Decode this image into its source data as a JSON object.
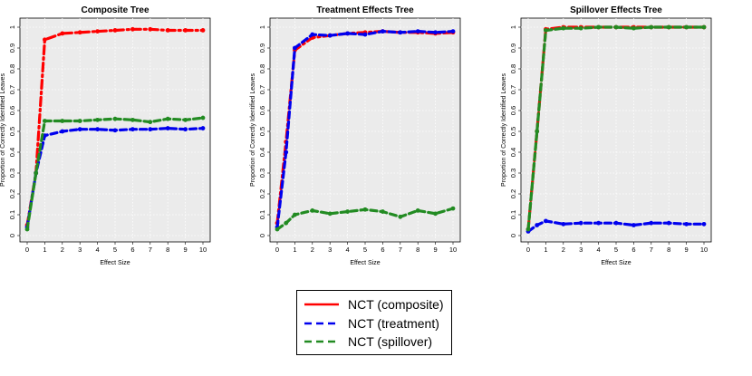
{
  "colors": {
    "composite": "#ff0000",
    "treatment": "#0000ee",
    "spillover": "#228b22",
    "panel_bg": "#ebebeb",
    "grid": "#ffffff"
  },
  "legend": {
    "items": [
      {
        "label": "NCT (composite)",
        "color": "#ff0000",
        "style": "solid"
      },
      {
        "label": "NCT (treatment)",
        "color": "#0000ee",
        "style": "dashed"
      },
      {
        "label": "NCT (spillover)",
        "color": "#228b22",
        "style": "dashed"
      }
    ]
  },
  "chart_data": [
    {
      "type": "line",
      "title": "Composite Tree",
      "xlabel": "Effect Size",
      "ylabel": "Proportion of Correctly Identified Leaves",
      "xlim": [
        0,
        10
      ],
      "ylim": [
        0,
        1
      ],
      "xticks": [
        "0",
        "1",
        "2",
        "3",
        "4",
        "5",
        "6",
        "7",
        "8",
        "9",
        "10"
      ],
      "yticks": [
        "0",
        "0.1",
        "0.2",
        "0.3",
        "0.4",
        "0.5",
        "0.6",
        "0.7",
        "0.8",
        "0.9",
        "1"
      ],
      "x": [
        0,
        0.5,
        1,
        2,
        3,
        4,
        5,
        6,
        7,
        8,
        9,
        10
      ],
      "series": [
        {
          "name": "NCT (composite)",
          "values": [
            0.05,
            0.3,
            0.94,
            0.97,
            0.975,
            0.98,
            0.985,
            0.99,
            0.99,
            0.985,
            0.985,
            0.985
          ]
        },
        {
          "name": "NCT (treatment)",
          "values": [
            0.04,
            0.3,
            0.48,
            0.5,
            0.51,
            0.51,
            0.505,
            0.51,
            0.51,
            0.515,
            0.51,
            0.515
          ]
        },
        {
          "name": "NCT (spillover)",
          "values": [
            0.03,
            0.3,
            0.55,
            0.55,
            0.55,
            0.555,
            0.56,
            0.555,
            0.545,
            0.56,
            0.555,
            0.565
          ]
        }
      ]
    },
    {
      "type": "line",
      "title": "Treatment Effects Tree",
      "xlabel": "Effect Size",
      "ylabel": "Proportion of Correctly Identified Leaves",
      "xlim": [
        0,
        10
      ],
      "ylim": [
        0,
        1
      ],
      "xticks": [
        "0",
        "1",
        "2",
        "3",
        "4",
        "5",
        "6",
        "7",
        "8",
        "9",
        "10"
      ],
      "yticks": [
        "0",
        "0.1",
        "0.2",
        "0.3",
        "0.4",
        "0.5",
        "0.6",
        "0.7",
        "0.8",
        "0.9",
        "1"
      ],
      "x": [
        0,
        0.5,
        1,
        2,
        3,
        4,
        5,
        6,
        7,
        8,
        9,
        10
      ],
      "series": [
        {
          "name": "NCT (composite)",
          "values": [
            0.06,
            0.45,
            0.89,
            0.95,
            0.96,
            0.97,
            0.975,
            0.98,
            0.975,
            0.975,
            0.97,
            0.975
          ]
        },
        {
          "name": "NCT (treatment)",
          "values": [
            0.04,
            0.4,
            0.9,
            0.965,
            0.96,
            0.97,
            0.965,
            0.98,
            0.975,
            0.98,
            0.975,
            0.98
          ]
        },
        {
          "name": "NCT (spillover)",
          "values": [
            0.03,
            0.06,
            0.1,
            0.12,
            0.105,
            0.115,
            0.125,
            0.115,
            0.09,
            0.12,
            0.105,
            0.13
          ]
        }
      ]
    },
    {
      "type": "line",
      "title": "Spillover Effects Tree",
      "xlabel": "Effect Size",
      "ylabel": "Proportion of Correctly Identified Leaves",
      "xlim": [
        0,
        10
      ],
      "ylim": [
        0,
        1
      ],
      "xticks": [
        "0",
        "1",
        "2",
        "3",
        "4",
        "5",
        "6",
        "7",
        "8",
        "9",
        "10"
      ],
      "yticks": [
        "0",
        "0.1",
        "0.2",
        "0.3",
        "0.4",
        "0.5",
        "0.6",
        "0.7",
        "0.8",
        "0.9",
        "1"
      ],
      "x": [
        0,
        0.5,
        1,
        2,
        3,
        4,
        5,
        6,
        7,
        8,
        9,
        10
      ],
      "series": [
        {
          "name": "NCT (composite)",
          "values": [
            0.03,
            0.5,
            0.99,
            1.0,
            1.0,
            1.0,
            1.0,
            1.0,
            1.0,
            1.0,
            1.0,
            1.0
          ]
        },
        {
          "name": "NCT (treatment)",
          "values": [
            0.02,
            0.05,
            0.07,
            0.055,
            0.06,
            0.06,
            0.06,
            0.05,
            0.06,
            0.06,
            0.055,
            0.055
          ]
        },
        {
          "name": "NCT (spillover)",
          "values": [
            0.03,
            0.5,
            0.985,
            0.995,
            0.995,
            1.0,
            1.0,
            0.995,
            1.0,
            1.0,
            1.0,
            1.0
          ]
        }
      ]
    }
  ]
}
